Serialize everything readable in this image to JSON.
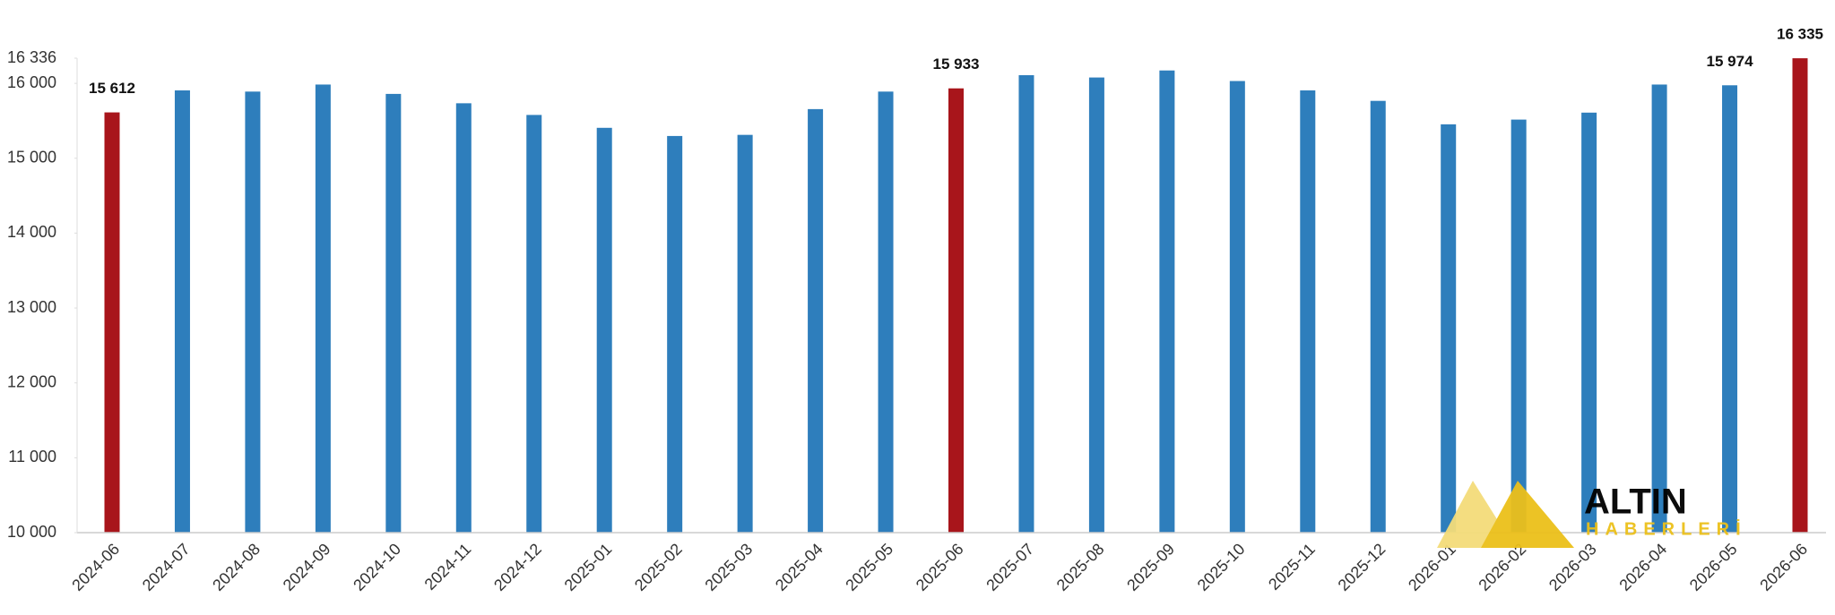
{
  "chart_data": {
    "type": "bar",
    "categories": [
      "2024-06",
      "2024-07",
      "2024-08",
      "2024-09",
      "2024-10",
      "2024-11",
      "2024-12",
      "2025-01",
      "2025-02",
      "2025-03",
      "2025-04",
      "2025-05",
      "2025-06",
      "2025-07",
      "2025-08",
      "2025-09",
      "2025-10",
      "2025-11",
      "2025-12",
      "2026-01",
      "2026-02",
      "2026-03",
      "2026-04",
      "2026-05",
      "2026-06"
    ],
    "values": [
      15612,
      15906,
      15890,
      15984,
      15859,
      15734,
      15578,
      15406,
      15297,
      15312,
      15656,
      15890,
      15933,
      16109,
      16078,
      16172,
      16031,
      15906,
      15766,
      15453,
      15516,
      15609,
      15984,
      15974,
      16335
    ],
    "value_labels": [
      "15 612",
      null,
      null,
      null,
      null,
      null,
      null,
      null,
      null,
      null,
      null,
      null,
      "15 933",
      null,
      null,
      null,
      null,
      null,
      null,
      null,
      null,
      null,
      null,
      "15 974",
      "16 335"
    ],
    "colors": [
      "#a8151b",
      "#2e7ebc",
      "#2e7ebc",
      "#2e7ebc",
      "#2e7ebc",
      "#2e7ebc",
      "#2e7ebc",
      "#2e7ebc",
      "#2e7ebc",
      "#2e7ebc",
      "#2e7ebc",
      "#2e7ebc",
      "#a8151b",
      "#2e7ebc",
      "#2e7ebc",
      "#2e7ebc",
      "#2e7ebc",
      "#2e7ebc",
      "#2e7ebc",
      "#2e7ebc",
      "#2e7ebc",
      "#2e7ebc",
      "#2e7ebc",
      "#2e7ebc",
      "#a8151b"
    ],
    "ylim": [
      10000,
      16336
    ],
    "yticks": [
      {
        "value": 10000,
        "label": "10 000"
      },
      {
        "value": 11000,
        "label": "11 000"
      },
      {
        "value": 12000,
        "label": "12 000"
      },
      {
        "value": 13000,
        "label": "13 000"
      },
      {
        "value": 14000,
        "label": "14 000"
      },
      {
        "value": 15000,
        "label": "15 000"
      },
      {
        "value": 16000,
        "label": "16 000"
      },
      {
        "value": 16336,
        "label": "16 336"
      }
    ],
    "grid": false
  },
  "watermark": {
    "line1": "ALTIN",
    "line2": "HABERLERİ"
  }
}
